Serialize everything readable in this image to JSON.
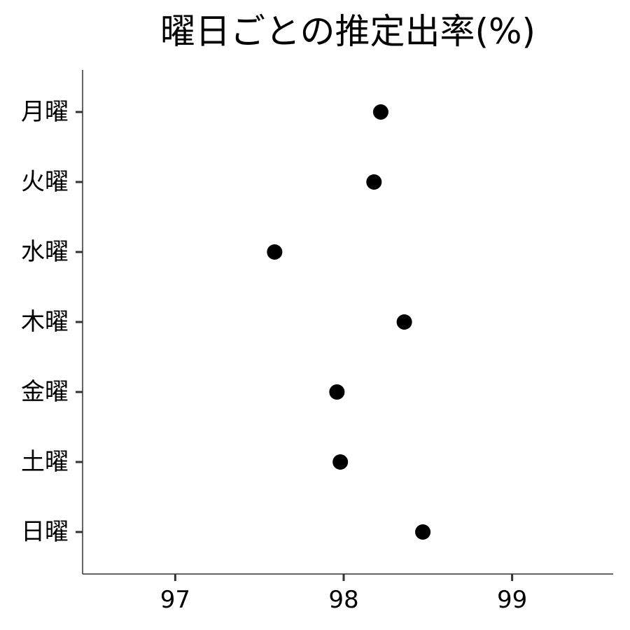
{
  "chart_data": {
    "type": "scatter",
    "title": "曜日ごとの推定出率(%)",
    "xlabel": "",
    "ylabel": "",
    "categories": [
      "月曜",
      "火曜",
      "水曜",
      "木曜",
      "金曜",
      "土曜",
      "日曜"
    ],
    "values": [
      98.22,
      98.18,
      97.59,
      98.36,
      97.96,
      97.98,
      98.47
    ],
    "xlim": [
      96.45,
      99.6
    ],
    "xticks": [
      97,
      98,
      99
    ],
    "grid": false,
    "legend": "none",
    "point_color": "#000000",
    "axis_color": "#333333"
  }
}
